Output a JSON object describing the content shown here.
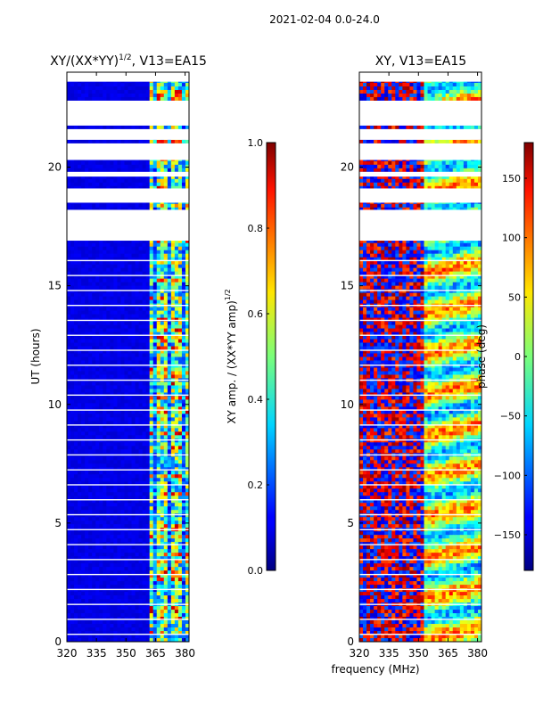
{
  "figure": {
    "suptitle": "2021-02-04 0.0-24.0",
    "shared_xlabel": "frequency (MHz)"
  },
  "chart_data": [
    {
      "type": "heatmap",
      "title": "XY/(XX*YY)",
      "title_superscript": "1/2",
      "title_suffix": ", V13=EA15",
      "xlabel": "",
      "ylabel": "UT (hours)",
      "xlim": [
        320,
        382
      ],
      "ylim": [
        0,
        24
      ],
      "xticks": [
        320,
        335,
        350,
        365,
        380
      ],
      "yticks": [
        0,
        5,
        10,
        15,
        20
      ],
      "colormap": "jet",
      "value_range": [
        0.0,
        1.0
      ],
      "colorbar": {
        "label": "XY amp. / (XX*YY amp)",
        "label_superscript": "1/2",
        "ticks": [
          "0.0",
          "0.2",
          "0.4",
          "0.6",
          "0.8",
          "1.0"
        ],
        "tick_values": [
          0.0,
          0.2,
          0.4,
          0.6,
          0.8,
          1.0
        ]
      },
      "data_gaps_hours": [
        [
          16.9,
          18.2
        ],
        [
          18.5,
          19.1
        ],
        [
          19.6,
          19.8
        ],
        [
          20.3,
          21.0
        ],
        [
          21.15,
          21.6
        ],
        [
          21.75,
          22.8
        ],
        [
          23.6,
          24.0
        ]
      ],
      "high_value_band_MHz": [
        362,
        382
      ]
    },
    {
      "type": "heatmap",
      "title": "XY, V13=EA15",
      "xlabel": "frequency (MHz)",
      "ylabel": "",
      "xlim": [
        320,
        382
      ],
      "ylim": [
        0,
        24
      ],
      "xticks": [
        320,
        335,
        350,
        365,
        380
      ],
      "yticks": [
        0,
        5,
        10,
        15,
        20
      ],
      "colormap": "jet",
      "value_range": [
        -180,
        180
      ],
      "colorbar": {
        "label": "phase (deg)",
        "ticks": [
          "150",
          "100",
          "50",
          "0",
          "−50",
          "−100",
          "−150"
        ],
        "tick_values": [
          150,
          100,
          50,
          0,
          -50,
          -100,
          -150
        ]
      },
      "data_gaps_hours": [
        [
          16.9,
          18.2
        ],
        [
          18.5,
          19.1
        ],
        [
          19.6,
          19.8
        ],
        [
          20.3,
          21.0
        ],
        [
          21.15,
          21.6
        ],
        [
          21.75,
          22.8
        ],
        [
          23.6,
          24.0
        ]
      ]
    }
  ]
}
